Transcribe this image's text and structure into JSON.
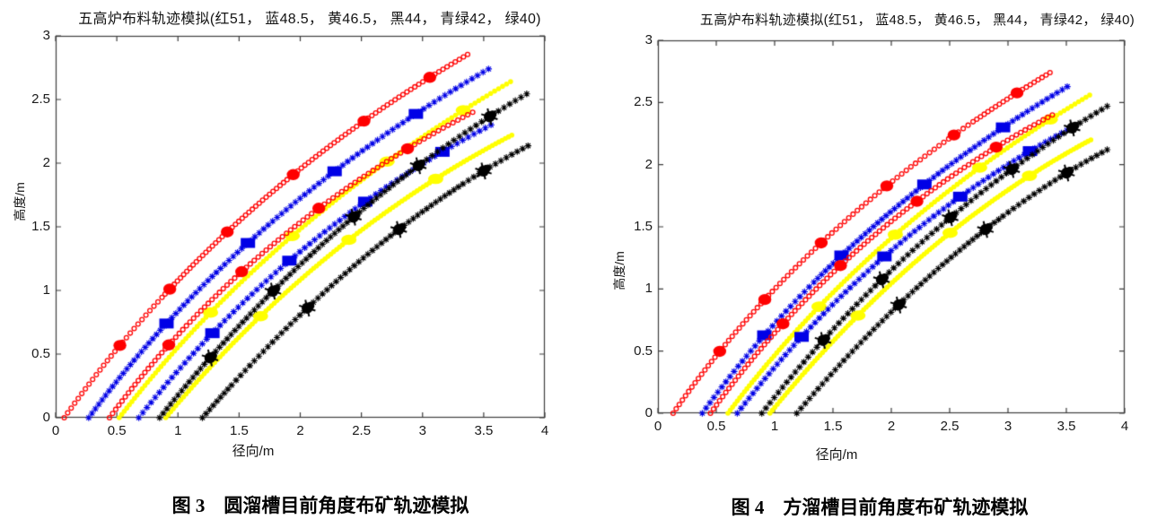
{
  "page": {
    "background": "#ffffff"
  },
  "chart_data": [
    {
      "type": "line",
      "title": "五高炉布料轨迹模拟(红51， 蓝48.5， 黄46.5， 黑44， 青绿42， 绿40)",
      "xlabel": "径向/m",
      "ylabel": "高度/m",
      "caption": "图 3　圆溜槽目前角度布矿轨迹模拟",
      "xlim": [
        0,
        4
      ],
      "ylim": [
        0,
        3
      ],
      "xticks": [
        0,
        0.5,
        1,
        1.5,
        2,
        2.5,
        3,
        3.5,
        4
      ],
      "yticks": [
        0,
        0.5,
        1,
        1.5,
        2,
        2.5,
        3
      ],
      "angle_legend": {
        "红": 51,
        "蓝": 48.5,
        "黄": 46.5,
        "黑": 44,
        "青绿": 42,
        "绿": 40
      },
      "series": [
        {
          "name": "yellow-46.5-a",
          "color_label": "黄",
          "angle_deg": 46.5,
          "color": "#ffff00",
          "glyph": "dot",
          "marker": "ellipse",
          "start": [
            0.52,
            0
          ],
          "mid": [
            1.93,
            1.43
          ],
          "end": [
            3.72,
            2.64
          ],
          "slope_start": 1.25,
          "slope_end": 0.56,
          "marker_ts": [
            0.28,
            0.5,
            0.73,
            0.9
          ]
        },
        {
          "name": "yellow-46.5-b",
          "color_label": "黄",
          "angle_deg": 46.5,
          "color": "#ffff00",
          "glyph": "dot",
          "marker": "ellipse",
          "start": [
            0.9,
            0
          ],
          "mid": [
            2.23,
            1.27
          ],
          "end": [
            3.73,
            2.22
          ],
          "slope_start": 1.15,
          "slope_end": 0.5,
          "marker_ts": [
            0.3,
            0.56,
            0.8
          ]
        },
        {
          "name": "blue-48.5-a",
          "color_label": "蓝",
          "angle_deg": 48.5,
          "color": "#0000e6",
          "glyph": "star",
          "marker": "square",
          "start": [
            0.27,
            0
          ],
          "mid": [
            1.7,
            1.48
          ],
          "end": [
            3.54,
            2.74
          ],
          "slope_start": 1.3,
          "slope_end": 0.56,
          "marker_ts": [
            0.24,
            0.46,
            0.67,
            0.85
          ]
        },
        {
          "name": "blue-48.5-b",
          "color_label": "蓝",
          "angle_deg": 48.5,
          "color": "#0000e6",
          "glyph": "star",
          "marker": "square",
          "start": [
            0.68,
            0
          ],
          "mid": [
            2.0,
            1.3
          ],
          "end": [
            3.56,
            2.3
          ],
          "slope_start": 1.22,
          "slope_end": 0.5,
          "marker_ts": [
            0.24,
            0.47,
            0.68,
            0.88
          ]
        },
        {
          "name": "red-51-a",
          "color_label": "红",
          "angle_deg": 51,
          "color": "#ff0000",
          "glyph": "ring",
          "marker": "circle",
          "start": [
            0.07,
            0
          ],
          "mid": [
            1.54,
            1.58
          ],
          "end": [
            3.38,
            2.86
          ],
          "slope_start": 1.35,
          "slope_end": 0.56,
          "marker_ts": [
            0.17,
            0.31,
            0.46,
            0.62,
            0.78,
            0.92
          ]
        },
        {
          "name": "red-51-b",
          "color_label": "红",
          "angle_deg": 51,
          "color": "#ff0000",
          "glyph": "ring",
          "marker": "circle",
          "start": [
            0.44,
            0
          ],
          "mid": [
            1.75,
            1.34
          ],
          "end": [
            3.41,
            2.4
          ],
          "slope_start": 1.3,
          "slope_end": 0.5,
          "marker_ts": [
            0.2,
            0.42,
            0.63,
            0.85
          ]
        },
        {
          "name": "black-44-a",
          "color_label": "黑",
          "angle_deg": 44,
          "color": "#000000",
          "glyph": "star",
          "marker": "blob",
          "start": [
            0.85,
            0
          ],
          "mid": [
            2.28,
            1.45
          ],
          "end": [
            3.88,
            2.56
          ],
          "slope_start": 1.2,
          "slope_end": 0.56,
          "marker_ts": [
            0.15,
            0.33,
            0.55,
            0.72,
            0.9
          ]
        },
        {
          "name": "black-44-b",
          "color_label": "黑",
          "angle_deg": 44,
          "color": "#000000",
          "glyph": "star",
          "marker": "blob",
          "start": [
            1.2,
            0
          ],
          "mid": [
            2.54,
            1.27
          ],
          "end": [
            3.87,
            2.14
          ],
          "slope_start": 1.1,
          "slope_end": 0.5,
          "marker_ts": [
            0.32,
            0.6,
            0.86
          ]
        }
      ]
    },
    {
      "type": "line",
      "title": "五高炉布料轨迹模拟(红51， 蓝48.5， 黄46.5， 黑44， 青绿42， 绿40)",
      "xlabel": "径向/m",
      "ylabel": "高度/m",
      "caption": "图 4　方溜槽目前角度布矿轨迹模拟",
      "xlim": [
        0,
        4
      ],
      "ylim": [
        0,
        3
      ],
      "xticks": [
        0,
        0.5,
        1,
        1.5,
        2,
        2.5,
        3,
        3.5,
        4
      ],
      "yticks": [
        0,
        0.5,
        1,
        1.5,
        2,
        2.5,
        3
      ],
      "angle_legend": {
        "红": 51,
        "蓝": 48.5,
        "黄": 46.5,
        "黑": 44,
        "青绿": 42,
        "绿": 40
      },
      "series": [
        {
          "name": "yellow-46.5-a",
          "color_label": "黄",
          "angle_deg": 46.5,
          "color": "#ffff00",
          "glyph": "dot",
          "marker": "ellipse",
          "start": [
            0.6,
            0
          ],
          "mid": [
            1.97,
            1.39
          ],
          "end": [
            3.7,
            2.56
          ],
          "slope_start": 1.25,
          "slope_end": 0.56,
          "marker_ts": [
            0.3,
            0.52,
            0.74,
            0.91
          ]
        },
        {
          "name": "yellow-46.5-b",
          "color_label": "黄",
          "angle_deg": 46.5,
          "color": "#ffff00",
          "glyph": "dot",
          "marker": "ellipse",
          "start": [
            0.96,
            0
          ],
          "mid": [
            2.28,
            1.28
          ],
          "end": [
            3.71,
            2.2
          ],
          "slope_start": 1.15,
          "slope_end": 0.5,
          "marker_ts": [
            0.29,
            0.58,
            0.82
          ]
        },
        {
          "name": "blue-48.5-a",
          "color_label": "蓝",
          "angle_deg": 48.5,
          "color": "#0000e6",
          "glyph": "star",
          "marker": "square",
          "start": [
            0.38,
            0
          ],
          "mid": [
            1.76,
            1.43
          ],
          "end": [
            3.53,
            2.64
          ],
          "slope_start": 1.3,
          "slope_end": 0.56,
          "marker_ts": [
            0.21,
            0.44,
            0.66,
            0.85
          ]
        },
        {
          "name": "blue-48.5-b",
          "color_label": "蓝",
          "angle_deg": 48.5,
          "color": "#0000e6",
          "glyph": "star",
          "marker": "square",
          "start": [
            0.68,
            0
          ],
          "mid": [
            2.0,
            1.31
          ],
          "end": [
            3.55,
            2.3
          ],
          "slope_start": 1.22,
          "slope_end": 0.5,
          "marker_ts": [
            0.22,
            0.48,
            0.7,
            0.89
          ]
        },
        {
          "name": "red-51-a",
          "color_label": "红",
          "angle_deg": 51,
          "color": "#ff0000",
          "glyph": "ring",
          "marker": "circle",
          "start": [
            0.13,
            0
          ],
          "mid": [
            1.53,
            1.48
          ],
          "end": [
            3.36,
            2.74
          ],
          "slope_start": 1.35,
          "slope_end": 0.56,
          "marker_ts": [
            0.16,
            0.3,
            0.46,
            0.63,
            0.79,
            0.93
          ]
        },
        {
          "name": "red-51-b",
          "color_label": "红",
          "angle_deg": 51,
          "color": "#ff0000",
          "glyph": "ring",
          "marker": "circle",
          "start": [
            0.45,
            0
          ],
          "mid": [
            1.77,
            1.36
          ],
          "end": [
            3.38,
            2.4
          ],
          "slope_start": 1.3,
          "slope_end": 0.5,
          "marker_ts": [
            0.25,
            0.43,
            0.65,
            0.86
          ]
        },
        {
          "name": "black-44-a",
          "color_label": "黑",
          "angle_deg": 44,
          "color": "#000000",
          "glyph": "star",
          "marker": "blob",
          "start": [
            0.89,
            0
          ],
          "mid": [
            2.26,
            1.38
          ],
          "end": [
            3.85,
            2.47
          ],
          "slope_start": 1.2,
          "slope_end": 0.56,
          "marker_ts": [
            0.2,
            0.38,
            0.58,
            0.75,
            0.91
          ]
        },
        {
          "name": "black-44-b",
          "color_label": "黑",
          "angle_deg": 44,
          "color": "#000000",
          "glyph": "star",
          "marker": "blob",
          "start": [
            1.19,
            0
          ],
          "mid": [
            2.51,
            1.25
          ],
          "end": [
            3.85,
            2.12
          ],
          "slope_start": 1.1,
          "slope_end": 0.5,
          "marker_ts": [
            0.33,
            0.61,
            0.87
          ]
        }
      ]
    }
  ]
}
